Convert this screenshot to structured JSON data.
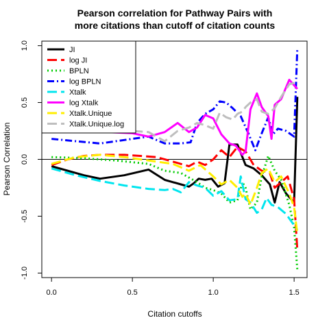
{
  "chart_data": {
    "type": "line",
    "title": [
      "Pearson correlation for Pathway Pairs with",
      "more citations than cutoff of citation counts"
    ],
    "xlabel": "Citation cutoffs",
    "ylabel": "Pearson Correlation",
    "xlim": [
      -0.06,
      1.58
    ],
    "ylim": [
      -1.04,
      1.04
    ],
    "xticks": [
      0.0,
      0.5,
      1.0,
      1.5
    ],
    "xtick_labels": [
      "0.0",
      "0.5",
      "1.0",
      "1.5"
    ],
    "yticks": [
      -1.0,
      -0.5,
      0.0,
      0.5,
      1.0
    ],
    "ytick_labels": [
      "-1.0",
      "-0.5",
      "0.0",
      "0.5",
      "1.0"
    ],
    "hline": 0,
    "legend_position": "top-left",
    "series": [
      {
        "name": "JI",
        "color": "#000000",
        "dash": "solid",
        "points": [
          [
            0.0,
            -0.06
          ],
          [
            0.2,
            -0.14
          ],
          [
            0.3,
            -0.17
          ],
          [
            0.45,
            -0.14
          ],
          [
            0.6,
            -0.09
          ],
          [
            0.7,
            -0.18
          ],
          [
            0.8,
            -0.22
          ],
          [
            0.85,
            -0.24
          ],
          [
            0.88,
            -0.21
          ],
          [
            0.91,
            -0.17
          ],
          [
            0.95,
            -0.18
          ],
          [
            0.99,
            -0.17
          ],
          [
            1.03,
            -0.24
          ],
          [
            1.07,
            -0.21
          ],
          [
            1.1,
            0.13
          ],
          [
            1.15,
            0.13
          ],
          [
            1.2,
            -0.05
          ],
          [
            1.25,
            -0.08
          ],
          [
            1.3,
            -0.14
          ],
          [
            1.35,
            -0.22
          ],
          [
            1.38,
            -0.38
          ],
          [
            1.41,
            -0.2
          ],
          [
            1.45,
            -0.3
          ],
          [
            1.5,
            -0.38
          ],
          [
            1.52,
            0.55
          ]
        ]
      },
      {
        "name": "log JI",
        "color": "#ff0000",
        "dash": "long",
        "points": [
          [
            0.0,
            -0.05
          ],
          [
            0.1,
            0.0
          ],
          [
            0.2,
            0.03
          ],
          [
            0.3,
            0.04
          ],
          [
            0.45,
            0.04
          ],
          [
            0.55,
            0.03
          ],
          [
            0.65,
            0.02
          ],
          [
            0.75,
            -0.02
          ],
          [
            0.85,
            -0.06
          ],
          [
            0.9,
            -0.02
          ],
          [
            0.95,
            -0.05
          ],
          [
            1.0,
            0.0
          ],
          [
            1.05,
            0.08
          ],
          [
            1.1,
            0.02
          ],
          [
            1.15,
            0.11
          ],
          [
            1.2,
            0.07
          ],
          [
            1.25,
            -0.05
          ],
          [
            1.3,
            -0.1
          ],
          [
            1.35,
            -0.12
          ],
          [
            1.38,
            -0.25
          ],
          [
            1.42,
            -0.2
          ],
          [
            1.46,
            -0.15
          ],
          [
            1.5,
            -0.35
          ],
          [
            1.52,
            -0.8
          ]
        ]
      },
      {
        "name": "BPLN",
        "color": "#00cc00",
        "dash": "dotted",
        "points": [
          [
            0.0,
            0.02
          ],
          [
            0.2,
            0.01
          ],
          [
            0.4,
            -0.01
          ],
          [
            0.6,
            -0.04
          ],
          [
            0.7,
            -0.1
          ],
          [
            0.8,
            -0.12
          ],
          [
            0.9,
            -0.2
          ],
          [
            0.95,
            -0.25
          ],
          [
            1.0,
            -0.27
          ],
          [
            1.05,
            -0.3
          ],
          [
            1.1,
            -0.38
          ],
          [
            1.15,
            -0.36
          ],
          [
            1.18,
            -0.2
          ],
          [
            1.2,
            -0.25
          ],
          [
            1.23,
            -0.44
          ],
          [
            1.27,
            -0.38
          ],
          [
            1.3,
            -0.15
          ],
          [
            1.34,
            0.03
          ],
          [
            1.38,
            -0.1
          ],
          [
            1.42,
            -0.18
          ],
          [
            1.47,
            -0.4
          ],
          [
            1.5,
            -0.6
          ],
          [
            1.52,
            -0.97
          ]
        ]
      },
      {
        "name": "log BPLN",
        "color": "#0000ff",
        "dash": "dashdot",
        "points": [
          [
            0.0,
            0.18
          ],
          [
            0.15,
            0.16
          ],
          [
            0.3,
            0.14
          ],
          [
            0.5,
            0.18
          ],
          [
            0.6,
            0.2
          ],
          [
            0.7,
            0.14
          ],
          [
            0.8,
            0.14
          ],
          [
            0.86,
            0.15
          ],
          [
            0.9,
            0.32
          ],
          [
            0.95,
            0.4
          ],
          [
            1.0,
            0.44
          ],
          [
            1.04,
            0.51
          ],
          [
            1.08,
            0.5
          ],
          [
            1.12,
            0.45
          ],
          [
            1.17,
            0.38
          ],
          [
            1.22,
            0.22
          ],
          [
            1.26,
            0.08
          ],
          [
            1.3,
            0.23
          ],
          [
            1.34,
            0.37
          ],
          [
            1.37,
            0.22
          ],
          [
            1.4,
            0.27
          ],
          [
            1.45,
            0.25
          ],
          [
            1.5,
            0.2
          ],
          [
            1.52,
            0.98
          ]
        ]
      },
      {
        "name": "Xtalk",
        "color": "#00e5ee",
        "dash": "long",
        "points": [
          [
            0.0,
            -0.08
          ],
          [
            0.15,
            -0.14
          ],
          [
            0.3,
            -0.19
          ],
          [
            0.45,
            -0.23
          ],
          [
            0.6,
            -0.26
          ],
          [
            0.7,
            -0.27
          ],
          [
            0.75,
            -0.26
          ],
          [
            0.8,
            -0.29
          ],
          [
            0.85,
            -0.2
          ],
          [
            0.9,
            -0.23
          ],
          [
            0.95,
            -0.25
          ],
          [
            1.0,
            -0.32
          ],
          [
            1.05,
            -0.28
          ],
          [
            1.1,
            -0.36
          ],
          [
            1.15,
            -0.35
          ],
          [
            1.17,
            -0.15
          ],
          [
            1.2,
            -0.35
          ],
          [
            1.23,
            -0.38
          ],
          [
            1.27,
            -0.47
          ],
          [
            1.3,
            -0.44
          ],
          [
            1.33,
            -0.34
          ],
          [
            1.36,
            -0.4
          ],
          [
            1.4,
            -0.42
          ],
          [
            1.45,
            -0.48
          ],
          [
            1.5,
            -0.58
          ],
          [
            1.52,
            -0.62
          ]
        ]
      },
      {
        "name": "log Xtalk",
        "color": "#ff00ff",
        "dash": "solid",
        "points": [
          [
            0.0,
            0.27
          ],
          [
            0.1,
            0.28
          ],
          [
            0.2,
            0.25
          ],
          [
            0.35,
            0.24
          ],
          [
            0.5,
            0.23
          ],
          [
            0.6,
            0.2
          ],
          [
            0.7,
            0.24
          ],
          [
            0.78,
            0.32
          ],
          [
            0.85,
            0.24
          ],
          [
            0.9,
            0.28
          ],
          [
            0.95,
            0.39
          ],
          [
            1.0,
            0.36
          ],
          [
            1.05,
            0.22
          ],
          [
            1.1,
            0.14
          ],
          [
            1.14,
            0.12
          ],
          [
            1.18,
            0.04
          ],
          [
            1.2,
            0.07
          ],
          [
            1.23,
            0.44
          ],
          [
            1.27,
            0.58
          ],
          [
            1.3,
            0.46
          ],
          [
            1.34,
            0.38
          ],
          [
            1.36,
            0.18
          ],
          [
            1.38,
            0.48
          ],
          [
            1.42,
            0.53
          ],
          [
            1.47,
            0.7
          ],
          [
            1.52,
            0.62
          ]
        ]
      },
      {
        "name": "Xtalk.Unique",
        "color": "#ffee00",
        "dash": "long",
        "points": [
          [
            0.0,
            -0.04
          ],
          [
            0.15,
            0.02
          ],
          [
            0.3,
            0.04
          ],
          [
            0.45,
            0.02
          ],
          [
            0.55,
            0.0
          ],
          [
            0.65,
            -0.02
          ],
          [
            0.75,
            -0.04
          ],
          [
            0.85,
            -0.1
          ],
          [
            0.92,
            -0.05
          ],
          [
            0.96,
            -0.1
          ],
          [
            1.0,
            -0.15
          ],
          [
            1.05,
            -0.22
          ],
          [
            1.1,
            -0.18
          ],
          [
            1.15,
            -0.25
          ],
          [
            1.18,
            -0.33
          ],
          [
            1.2,
            -0.3
          ],
          [
            1.23,
            -0.4
          ],
          [
            1.27,
            -0.25
          ],
          [
            1.3,
            -0.12
          ],
          [
            1.34,
            -0.08
          ],
          [
            1.38,
            -0.2
          ],
          [
            1.42,
            -0.15
          ],
          [
            1.47,
            -0.3
          ],
          [
            1.5,
            -0.42
          ],
          [
            1.52,
            -0.66
          ]
        ]
      },
      {
        "name": "Xtalk.Unique.log",
        "color": "#bebebe",
        "dash": "long",
        "points": [
          [
            0.0,
            0.34
          ],
          [
            0.1,
            0.32
          ],
          [
            0.25,
            0.29
          ],
          [
            0.4,
            0.27
          ],
          [
            0.5,
            0.25
          ],
          [
            0.6,
            0.24
          ],
          [
            0.7,
            0.16
          ],
          [
            0.78,
            0.25
          ],
          [
            0.85,
            0.28
          ],
          [
            0.9,
            0.32
          ],
          [
            0.95,
            0.3
          ],
          [
            1.0,
            0.27
          ],
          [
            1.04,
            0.41
          ],
          [
            1.08,
            0.37
          ],
          [
            1.12,
            0.35
          ],
          [
            1.15,
            0.4
          ],
          [
            1.18,
            0.42
          ],
          [
            1.2,
            0.46
          ],
          [
            1.23,
            0.5
          ],
          [
            1.27,
            0.53
          ],
          [
            1.3,
            0.42
          ],
          [
            1.34,
            0.4
          ],
          [
            1.38,
            0.45
          ],
          [
            1.42,
            0.55
          ],
          [
            1.47,
            0.66
          ],
          [
            1.52,
            0.68
          ]
        ]
      }
    ]
  }
}
